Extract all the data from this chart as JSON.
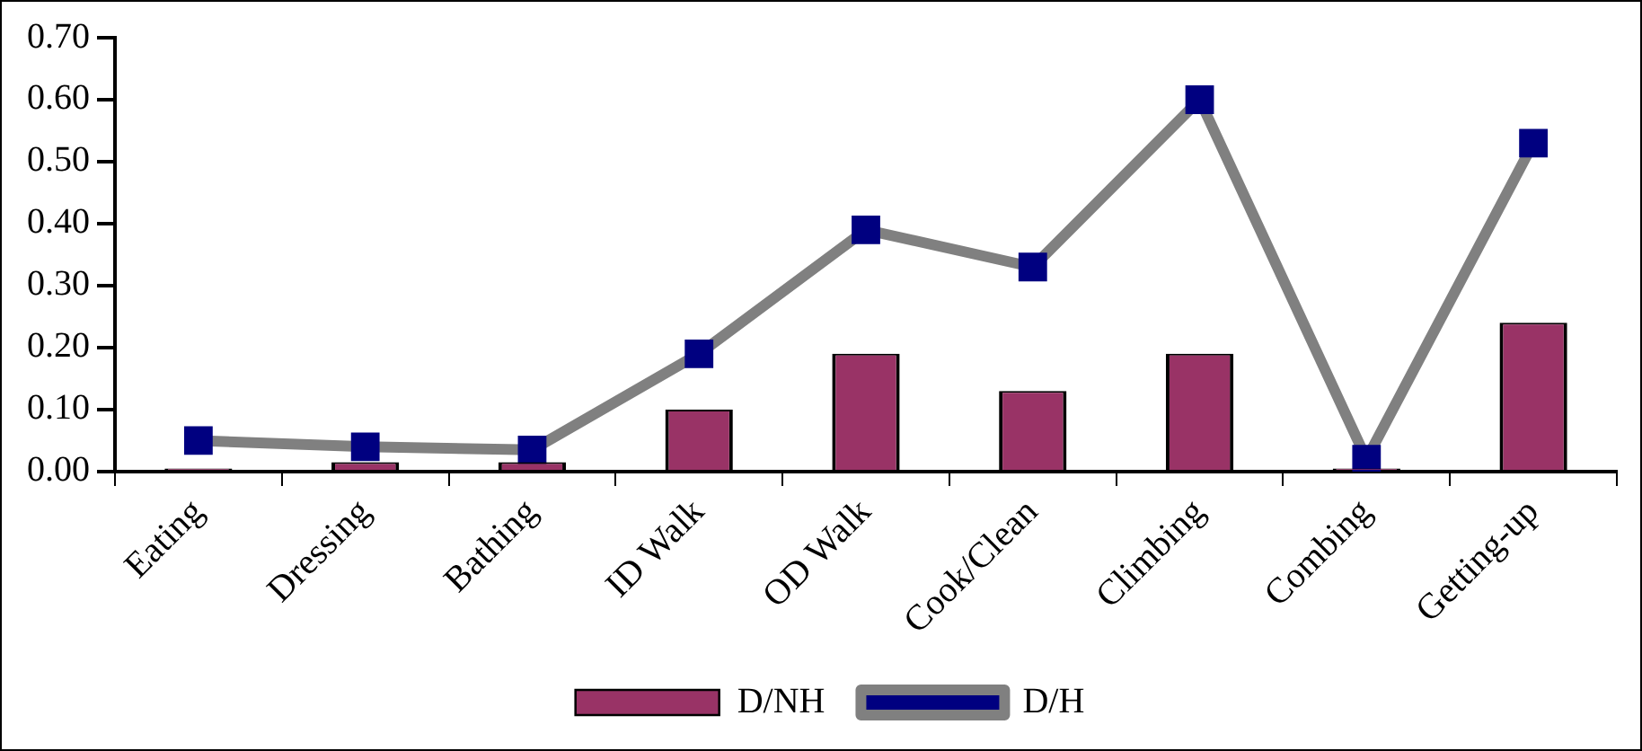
{
  "chart_data": {
    "type": "bar",
    "categories": [
      "Eating",
      "Dressing",
      "Bathing",
      "ID Walk",
      "OD Walk",
      "Cook/Clean",
      "Climbing",
      "Combing",
      "Getting-up"
    ],
    "series": [
      {
        "name": "D/NH",
        "color": "#993366",
        "values": [
          0.005,
          0.015,
          0.015,
          0.1,
          0.19,
          0.13,
          0.19,
          0.005,
          0.24
        ]
      },
      {
        "name": "D/H",
        "type": "line",
        "color": "#808080",
        "marker": "square",
        "values": [
          0.05,
          0.04,
          0.035,
          0.19,
          0.39,
          0.33,
          0.6,
          0.02,
          0.53
        ]
      }
    ],
    "ylim": [
      0,
      0.7
    ],
    "yticks": [
      {
        "value": 0,
        "label": "0.00"
      },
      {
        "value": 0.1,
        "label": "0.10"
      },
      {
        "value": 0.2,
        "label": "0.20"
      },
      {
        "value": 0.3,
        "label": "0.30"
      },
      {
        "value": 0.4,
        "label": "0.40"
      },
      {
        "value": 0.5,
        "label": "0.50"
      },
      {
        "value": 0.6,
        "label": "0.60"
      },
      {
        "value": 0.7,
        "label": "0.70"
      }
    ],
    "grid": false,
    "legend": "bottom"
  }
}
